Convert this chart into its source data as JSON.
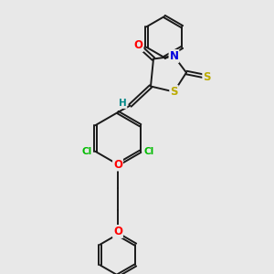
{
  "bg_color": "#e8e8e8",
  "bond_color": "#1a1a1a",
  "bond_width": 1.4,
  "atom_colors": {
    "O": "#ff0000",
    "N": "#0000dd",
    "S": "#bbaa00",
    "Cl": "#00bb00",
    "H": "#008888",
    "C": "#1a1a1a"
  },
  "font_size": 8.5,
  "font_size_small": 7.5,
  "dbo": 0.08
}
